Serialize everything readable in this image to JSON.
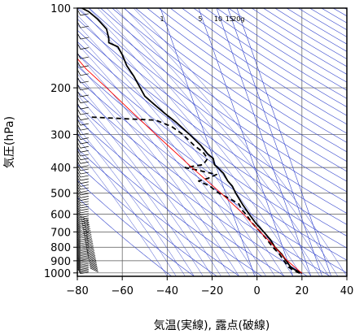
{
  "chart_data": {
    "type": "line",
    "title": "",
    "xlabel": "気温(実線), 露点(破線)",
    "ylabel": "気圧(hPa)",
    "xlim": [
      -80,
      40
    ],
    "ylim": [
      1030,
      100
    ],
    "yscale": "log",
    "grid": true,
    "x_ticks": [
      -80,
      -60,
      -40,
      -20,
      0,
      20,
      40
    ],
    "y_ticks": [
      100,
      200,
      300,
      400,
      500,
      600,
      700,
      800,
      900,
      1000
    ],
    "mixing_ratio_labels": [
      {
        "text": "1",
        "t": -43
      },
      {
        "text": "5",
        "t": -26
      },
      {
        "text": "10",
        "t": -18
      },
      {
        "text": "15",
        "t": -13
      },
      {
        "text": "20g",
        "t": -9
      }
    ],
    "series": [
      {
        "role": "temperature",
        "style": "solid",
        "color": "#000000",
        "points": [
          {
            "p": 1003,
            "t": 20
          },
          {
            "p": 975,
            "t": 17
          },
          {
            "p": 950,
            "t": 15
          },
          {
            "p": 925,
            "t": 14
          },
          {
            "p": 900,
            "t": 13
          },
          {
            "p": 850,
            "t": 11
          },
          {
            "p": 800,
            "t": 8
          },
          {
            "p": 750,
            "t": 6
          },
          {
            "p": 700,
            "t": 3
          },
          {
            "p": 650,
            "t": -0.5
          },
          {
            "p": 600,
            "t": -3.5
          },
          {
            "p": 550,
            "t": -6.5
          },
          {
            "p": 500,
            "t": -9.5
          },
          {
            "p": 470,
            "t": -11
          },
          {
            "p": 450,
            "t": -13
          },
          {
            "p": 420,
            "t": -15
          },
          {
            "p": 400,
            "t": -17.5
          },
          {
            "p": 390,
            "t": -19
          },
          {
            "p": 370,
            "t": -19.5
          },
          {
            "p": 355,
            "t": -22
          },
          {
            "p": 330,
            "t": -25
          },
          {
            "p": 300,
            "t": -30
          },
          {
            "p": 270,
            "t": -36
          },
          {
            "p": 250,
            "t": -41
          },
          {
            "p": 230,
            "t": -46
          },
          {
            "p": 215,
            "t": -50
          },
          {
            "p": 200,
            "t": -52
          },
          {
            "p": 180,
            "t": -55
          },
          {
            "p": 165,
            "t": -58
          },
          {
            "p": 150,
            "t": -60
          },
          {
            "p": 140,
            "t": -62
          },
          {
            "p": 135,
            "t": -66
          },
          {
            "p": 130,
            "t": -66
          },
          {
            "p": 120,
            "t": -67
          },
          {
            "p": 110,
            "t": -71
          },
          {
            "p": 103,
            "t": -75
          },
          {
            "p": 100,
            "t": -78
          }
        ]
      },
      {
        "role": "dewpoint",
        "style": "dashed",
        "color": "#000000",
        "points": [
          {
            "p": 1003,
            "t": 19
          },
          {
            "p": 975,
            "t": 16
          },
          {
            "p": 950,
            "t": 14
          },
          {
            "p": 900,
            "t": 12
          },
          {
            "p": 850,
            "t": 10
          },
          {
            "p": 800,
            "t": 7
          },
          {
            "p": 750,
            "t": 4.5
          },
          {
            "p": 700,
            "t": 1.5
          },
          {
            "p": 650,
            "t": -2
          },
          {
            "p": 600,
            "t": -5
          },
          {
            "p": 575,
            "t": -7
          },
          {
            "p": 550,
            "t": -8
          },
          {
            "p": 525,
            "t": -12
          },
          {
            "p": 500,
            "t": -17
          },
          {
            "p": 470,
            "t": -21
          },
          {
            "p": 450,
            "t": -26
          },
          {
            "p": 440,
            "t": -22
          },
          {
            "p": 425,
            "t": -18
          },
          {
            "p": 410,
            "t": -26
          },
          {
            "p": 400,
            "t": -32
          },
          {
            "p": 390,
            "t": -24
          },
          {
            "p": 370,
            "t": -22
          },
          {
            "p": 350,
            "t": -24
          },
          {
            "p": 330,
            "t": -28
          },
          {
            "p": 300,
            "t": -33
          },
          {
            "p": 280,
            "t": -38
          },
          {
            "p": 265,
            "t": -45
          },
          {
            "p": 258,
            "t": -74
          }
        ]
      },
      {
        "role": "parcel",
        "style": "solid",
        "color": "#ff0000",
        "points": [
          {
            "p": 1003,
            "t": 20
          },
          {
            "p": 900,
            "t": 13.5
          },
          {
            "p": 800,
            "t": 8
          },
          {
            "p": 700,
            "t": 1.5
          },
          {
            "p": 600,
            "t": -6
          },
          {
            "p": 500,
            "t": -16
          },
          {
            "p": 400,
            "t": -29
          },
          {
            "p": 300,
            "t": -45
          },
          {
            "p": 250,
            "t": -55
          },
          {
            "p": 200,
            "t": -67
          },
          {
            "p": 170,
            "t": -76
          },
          {
            "p": 155,
            "t": -80
          }
        ]
      }
    ]
  }
}
